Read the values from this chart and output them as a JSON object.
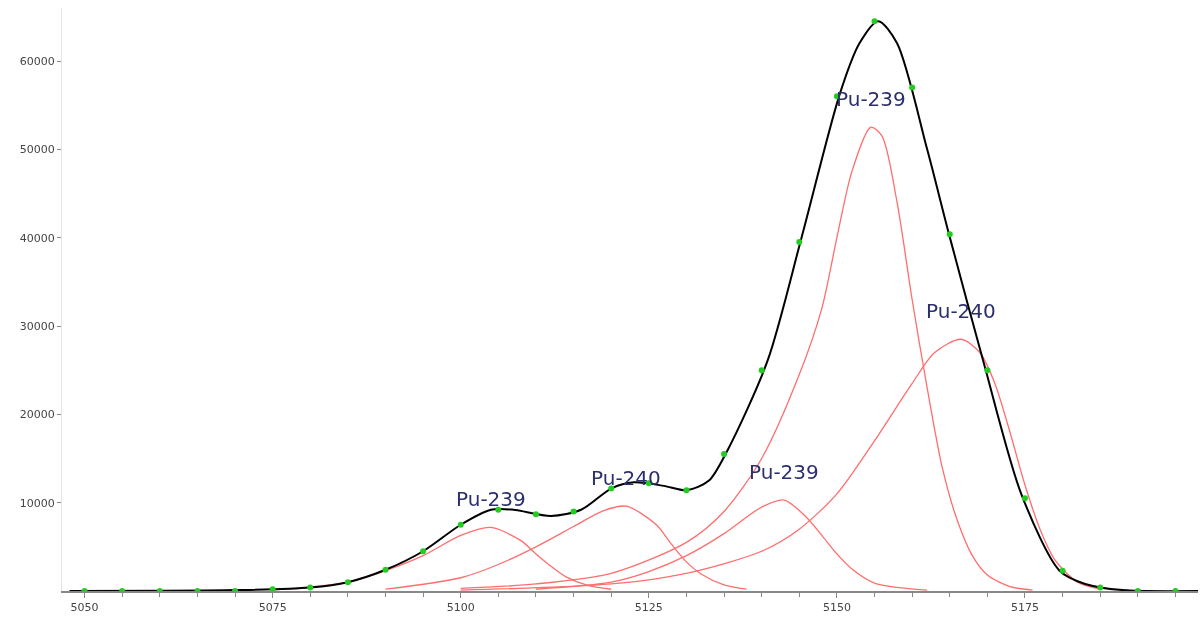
{
  "chart_data": {
    "type": "line",
    "xlim": [
      5047,
      5198
    ],
    "ylim": [
      0,
      66000
    ],
    "xticks": [
      5050,
      5075,
      5100,
      5125,
      5150,
      5175
    ],
    "yticks": [
      10000,
      20000,
      30000,
      40000,
      50000,
      60000
    ],
    "line_style": "solid",
    "series": [
      {
        "color": "#ff6e6e",
        "x": [
          5075,
          5085,
          5090,
          5095,
          5100,
          5104,
          5108,
          5110,
          5112,
          5114,
          5117,
          5120
        ],
        "values": [
          100,
          1000,
          2300,
          4000,
          6300,
          7200,
          5700,
          4200,
          2800,
          1600,
          600,
          200
        ]
      },
      {
        "color": "#ff6e6e",
        "x": [
          5090,
          5100,
          5105,
          5110,
          5115,
          5119,
          5122,
          5126,
          5128,
          5130,
          5132,
          5135,
          5138
        ],
        "values": [
          200,
          1500,
          3000,
          5000,
          7300,
          9100,
          9600,
          7500,
          5300,
          3300,
          1900,
          700,
          200
        ]
      },
      {
        "color": "#ff6e6e",
        "x": [
          5110,
          5120,
          5125,
          5130,
          5135,
          5140,
          5143,
          5146,
          5148,
          5150,
          5152,
          5155,
          5158,
          5162
        ],
        "values": [
          200,
          1000,
          2200,
          4000,
          6500,
          9500,
          10300,
          8300,
          6300,
          4200,
          2500,
          900,
          400,
          100
        ]
      },
      {
        "color": "#ff6e6e",
        "x": [
          5100,
          5110,
          5120,
          5130,
          5135,
          5140,
          5145,
          5148,
          5150,
          5152,
          5154.5,
          5156,
          5158,
          5160,
          5162,
          5164,
          5166,
          5168,
          5170,
          5173,
          5176
        ],
        "values": [
          300,
          800,
          2000,
          5500,
          9000,
          15000,
          24500,
          32000,
          40000,
          47500,
          52500,
          51500,
          44000,
          33000,
          23000,
          14000,
          8000,
          4000,
          1800,
          500,
          100
        ]
      },
      {
        "color": "#ff6e6e",
        "x": [
          5100,
          5120,
          5130,
          5140,
          5145,
          5150,
          5155,
          5160,
          5163,
          5166.5,
          5169,
          5171,
          5173,
          5175,
          5177,
          5179,
          5182,
          5185
        ],
        "values": [
          100,
          800,
          2000,
          4500,
          7000,
          11000,
          17000,
          23500,
          27000,
          28500,
          27000,
          23500,
          18000,
          12000,
          7000,
          3500,
          1000,
          200
        ]
      },
      {
        "color": "#000000",
        "x": [
          5048,
          5070,
          5080,
          5085,
          5090,
          5095,
          5100,
          5104,
          5107,
          5112,
          5116,
          5120,
          5123,
          5127,
          5130,
          5133,
          5135.5,
          5140.8,
          5145.3,
          5150.4,
          5153,
          5155.5,
          5158,
          5162,
          5164.9,
          5169.5,
          5174.5,
          5179.6,
          5183,
          5188,
          5198
        ],
        "values": [
          0,
          100,
          400,
          1000,
          2400,
          4500,
          7500,
          9200,
          9200,
          8500,
          9200,
          11600,
          12300,
          11900,
          11400,
          12500,
          16000,
          26100,
          40000,
          56300,
          62000,
          64500,
          62000,
          50000,
          40400,
          25900,
          11000,
          2300,
          800,
          100,
          0
        ]
      },
      {
        "type": "scatter",
        "color": "#22cc22",
        "x": [
          5050,
          5055,
          5060,
          5065,
          5070,
          5075,
          5080,
          5085,
          5090,
          5095,
          5100,
          5105,
          5110,
          5115,
          5120,
          5125,
          5130,
          5135,
          5140,
          5145,
          5150,
          5155,
          5160,
          5165,
          5170,
          5175,
          5180,
          5185,
          5190,
          5195
        ],
        "values": [
          0,
          0,
          0,
          0,
          0,
          200,
          400,
          1000,
          2400,
          4500,
          7500,
          9200,
          8700,
          9000,
          11600,
          12200,
          11400,
          15500,
          25000,
          39500,
          56000,
          64500,
          57000,
          40400,
          25000,
          10500,
          2300,
          400,
          0,
          0
        ]
      }
    ],
    "annotations": [
      {
        "text": "Pu-239",
        "x": 5104,
        "y": 7200
      },
      {
        "text": "Pu-240",
        "x": 5122,
        "y": 9600
      },
      {
        "text": "Pu-239",
        "x": 5143,
        "y": 10300
      },
      {
        "text": "Pu-239",
        "x": 5154.5,
        "y": 52500
      },
      {
        "text": "Pu-240",
        "x": 5166.5,
        "y": 28500
      }
    ]
  }
}
